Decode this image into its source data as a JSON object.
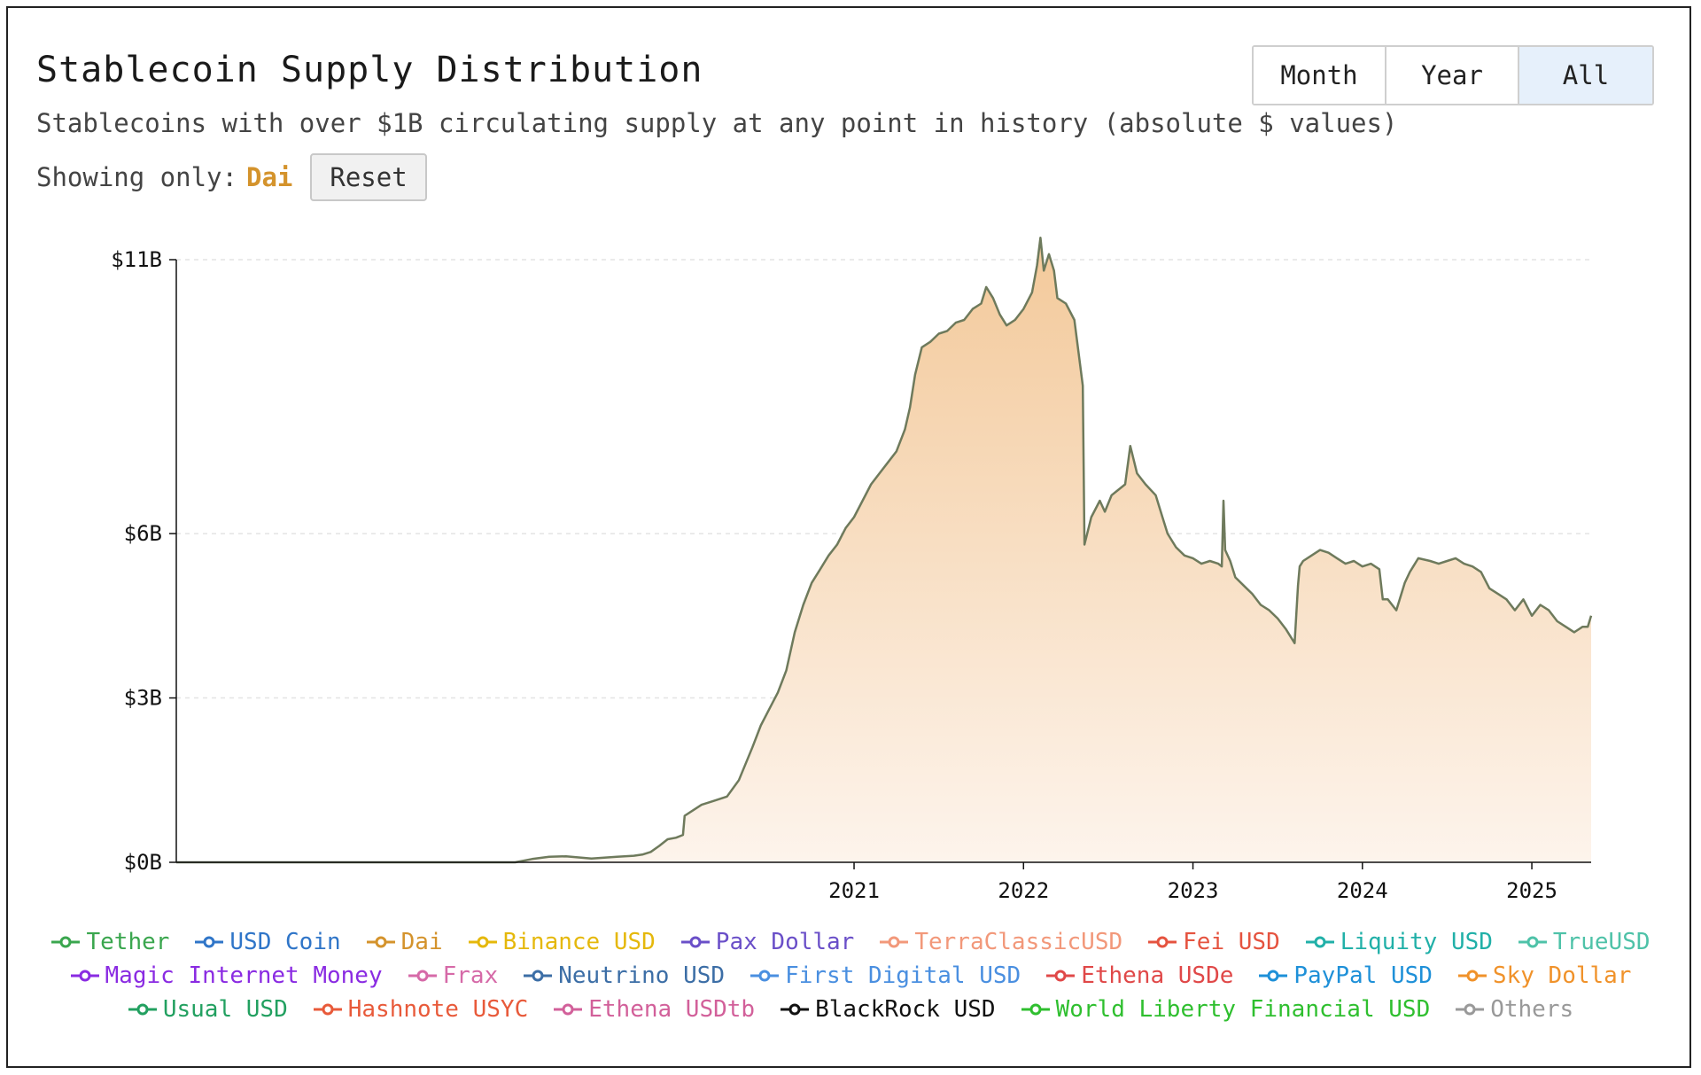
{
  "header": {
    "title": "Stablecoin Supply Distribution",
    "subtitle": "Stablecoins with over $1B circulating supply at any point in history (absolute $ values)",
    "filter_label": "Showing only:",
    "filter_value": "Dai",
    "reset_label": "Reset"
  },
  "range_buttons": [
    {
      "label": "Month",
      "active": false
    },
    {
      "label": "Year",
      "active": false
    },
    {
      "label": "All",
      "active": true
    }
  ],
  "colors": {
    "dai_fill_top": "#f3c99a",
    "dai_fill_bottom": "#fdf4ec",
    "dai_line": "#6e7a5c",
    "grid": "#e3e3e3"
  },
  "chart_data": {
    "type": "area",
    "title": "Stablecoin Supply Distribution",
    "xlabel": "",
    "ylabel": "",
    "y_ticks": [
      {
        "value": 0,
        "label": "$0B"
      },
      {
        "value": 3,
        "label": "$3B"
      },
      {
        "value": 6,
        "label": "$6B"
      },
      {
        "value": 11,
        "label": "$11B"
      }
    ],
    "x_ticks": [
      {
        "value": 2021.0,
        "label": "2021"
      },
      {
        "value": 2022.0,
        "label": "2022"
      },
      {
        "value": 2023.0,
        "label": "2023"
      },
      {
        "value": 2024.0,
        "label": "2024"
      },
      {
        "value": 2025.0,
        "label": "2025"
      }
    ],
    "xlim": [
      2017.0,
      2025.35
    ],
    "ylim": [
      0,
      11
    ],
    "grid": true,
    "series": [
      {
        "name": "Dai",
        "x": [
          2017.0,
          2019.0,
          2019.1,
          2019.2,
          2019.3,
          2019.45,
          2019.6,
          2019.7,
          2019.75,
          2019.8,
          2019.85,
          2019.9,
          2019.95,
          2019.99,
          2020.0,
          2020.05,
          2020.1,
          2020.17,
          2020.25,
          2020.32,
          2020.4,
          2020.45,
          2020.5,
          2020.55,
          2020.6,
          2020.65,
          2020.7,
          2020.75,
          2020.8,
          2020.85,
          2020.9,
          2020.95,
          2021.0,
          2021.05,
          2021.1,
          2021.15,
          2021.2,
          2021.25,
          2021.3,
          2021.33,
          2021.36,
          2021.4,
          2021.45,
          2021.5,
          2021.55,
          2021.6,
          2021.65,
          2021.7,
          2021.75,
          2021.78,
          2021.82,
          2021.86,
          2021.9,
          2021.95,
          2022.0,
          2022.05,
          2022.08,
          2022.1,
          2022.12,
          2022.15,
          2022.18,
          2022.2,
          2022.25,
          2022.3,
          2022.35,
          2022.36,
          2022.4,
          2022.45,
          2022.48,
          2022.52,
          2022.56,
          2022.6,
          2022.63,
          2022.67,
          2022.72,
          2022.78,
          2022.82,
          2022.85,
          2022.9,
          2022.95,
          2023.0,
          2023.05,
          2023.1,
          2023.15,
          2023.17,
          2023.18,
          2023.19,
          2023.22,
          2023.25,
          2023.3,
          2023.35,
          2023.4,
          2023.45,
          2023.5,
          2023.55,
          2023.6,
          2023.62,
          2023.63,
          2023.65,
          2023.7,
          2023.75,
          2023.8,
          2023.85,
          2023.9,
          2023.95,
          2024.0,
          2024.05,
          2024.1,
          2024.12,
          2024.15,
          2024.2,
          2024.25,
          2024.28,
          2024.3,
          2024.33,
          2024.4,
          2024.45,
          2024.5,
          2024.55,
          2024.6,
          2024.65,
          2024.7,
          2024.75,
          2024.8,
          2024.85,
          2024.9,
          2024.95,
          2025.0,
          2025.05,
          2025.1,
          2025.15,
          2025.2,
          2025.25,
          2025.3,
          2025.33,
          2025.35
        ],
        "y": [
          0,
          0,
          0.06,
          0.1,
          0.11,
          0.07,
          0.1,
          0.12,
          0.14,
          0.19,
          0.3,
          0.42,
          0.45,
          0.5,
          0.85,
          0.95,
          1.05,
          1.12,
          1.2,
          1.5,
          2.1,
          2.5,
          2.8,
          3.1,
          3.5,
          4.2,
          4.7,
          5.1,
          5.35,
          5.6,
          5.8,
          6.1,
          6.3,
          6.6,
          6.9,
          7.1,
          7.3,
          7.5,
          7.9,
          8.3,
          8.9,
          9.4,
          9.5,
          9.65,
          9.7,
          9.85,
          9.9,
          10.1,
          10.2,
          10.5,
          10.3,
          10.0,
          9.8,
          9.9,
          10.1,
          10.4,
          10.9,
          11.4,
          10.8,
          11.1,
          10.8,
          10.3,
          10.2,
          9.9,
          8.7,
          5.8,
          6.3,
          6.6,
          6.4,
          6.7,
          6.8,
          6.9,
          7.6,
          7.1,
          6.9,
          6.7,
          6.3,
          6.0,
          5.75,
          5.6,
          5.55,
          5.45,
          5.5,
          5.45,
          5.4,
          6.6,
          5.7,
          5.5,
          5.2,
          5.05,
          4.9,
          4.7,
          4.6,
          4.45,
          4.25,
          4.0,
          5.05,
          5.4,
          5.5,
          5.6,
          5.7,
          5.65,
          5.55,
          5.45,
          5.5,
          5.4,
          5.45,
          5.35,
          4.8,
          4.8,
          4.6,
          5.1,
          5.3,
          5.4,
          5.55,
          5.5,
          5.45,
          5.5,
          5.55,
          5.45,
          5.4,
          5.3,
          5.0,
          4.9,
          4.8,
          4.6,
          4.8,
          4.5,
          4.7,
          4.6,
          4.4,
          4.3,
          4.2,
          4.3,
          4.3,
          4.5
        ]
      }
    ],
    "legend": [
      {
        "name": "Tether",
        "color": "#3aa64e"
      },
      {
        "name": "USD Coin",
        "color": "#2f75c8"
      },
      {
        "name": "Dai",
        "color": "#d4932c"
      },
      {
        "name": "Binance USD",
        "color": "#e5b80b"
      },
      {
        "name": "Pax Dollar",
        "color": "#6a4fc8"
      },
      {
        "name": "TerraClassicUSD",
        "color": "#f2987a"
      },
      {
        "name": "Fei USD",
        "color": "#e5533f"
      },
      {
        "name": "Liquity USD",
        "color": "#21b0a8"
      },
      {
        "name": "TrueUSD",
        "color": "#4ec2a8"
      },
      {
        "name": "Magic Internet Money",
        "color": "#8a2be2"
      },
      {
        "name": "Frax",
        "color": "#d66aa8"
      },
      {
        "name": "Neutrino USD",
        "color": "#3c6ea6"
      },
      {
        "name": "First Digital USD",
        "color": "#4a8fe0"
      },
      {
        "name": "Ethena USDe",
        "color": "#e04848"
      },
      {
        "name": "PayPal USD",
        "color": "#1e90d8"
      },
      {
        "name": "Sky Dollar",
        "color": "#f0922a"
      },
      {
        "name": "Usual USD",
        "color": "#22a060"
      },
      {
        "name": "Hashnote USYC",
        "color": "#e85a3a"
      },
      {
        "name": "Ethena USDtb",
        "color": "#d2609a"
      },
      {
        "name": "BlackRock USD",
        "color": "#111111"
      },
      {
        "name": "World Liberty Financial USD",
        "color": "#2fbf2f"
      },
      {
        "name": "Others",
        "color": "#999999"
      }
    ]
  }
}
